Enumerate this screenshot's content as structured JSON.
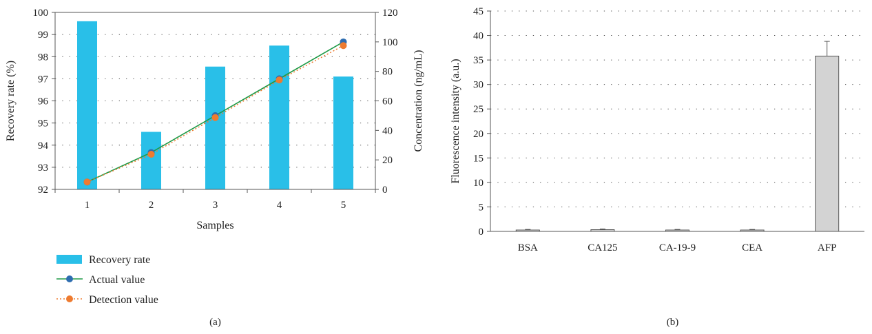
{
  "chart_data": [
    {
      "type": "bar",
      "panel_label": "(a)",
      "categories": [
        "1",
        "2",
        "3",
        "4",
        "5"
      ],
      "xlabel": "Samples",
      "ylabel": "Recovery rate (%)",
      "ylabel_right": "Concentration (ng/mL)",
      "ylim": [
        92,
        100
      ],
      "ylim_right": [
        0,
        120
      ],
      "yticks": [
        92,
        93,
        94,
        95,
        96,
        97,
        98,
        99,
        100
      ],
      "yticks_right": [
        0,
        20,
        40,
        60,
        80,
        100,
        120
      ],
      "grid": "dotted horizontal",
      "legend_position": "bottom-left",
      "series": [
        {
          "name": "Recovery rate",
          "kind": "bar",
          "axis": "left",
          "color": "#29bfe8",
          "values": [
            99.6,
            94.6,
            97.55,
            98.5,
            97.1
          ]
        },
        {
          "name": "Actual value",
          "kind": "line",
          "axis": "right",
          "color": "#1f9a47",
          "marker_color": "#2e6db0",
          "values": [
            5,
            25,
            50,
            75,
            100
          ]
        },
        {
          "name": "Detection value",
          "kind": "line",
          "axis": "right",
          "line_style": "dotted",
          "color": "#ee7b30",
          "values": [
            5,
            23.8,
            48.7,
            74.2,
            97.5
          ]
        }
      ]
    },
    {
      "type": "bar",
      "panel_label": "(b)",
      "categories": [
        "BSA",
        "CA125",
        "CA-19-9",
        "CEA",
        "AFP"
      ],
      "ylabel": "Fluorescence intensity (a.u.)",
      "ylim": [
        0,
        45
      ],
      "yticks": [
        0,
        5,
        10,
        15,
        20,
        25,
        30,
        35,
        40,
        45
      ],
      "grid": "dotted horizontal",
      "color": "#d3d3d3",
      "values": [
        0.25,
        0.35,
        0.2,
        0.25,
        35.8
      ],
      "errors": [
        0.15,
        0.15,
        0.2,
        0.15,
        3.0
      ]
    }
  ]
}
